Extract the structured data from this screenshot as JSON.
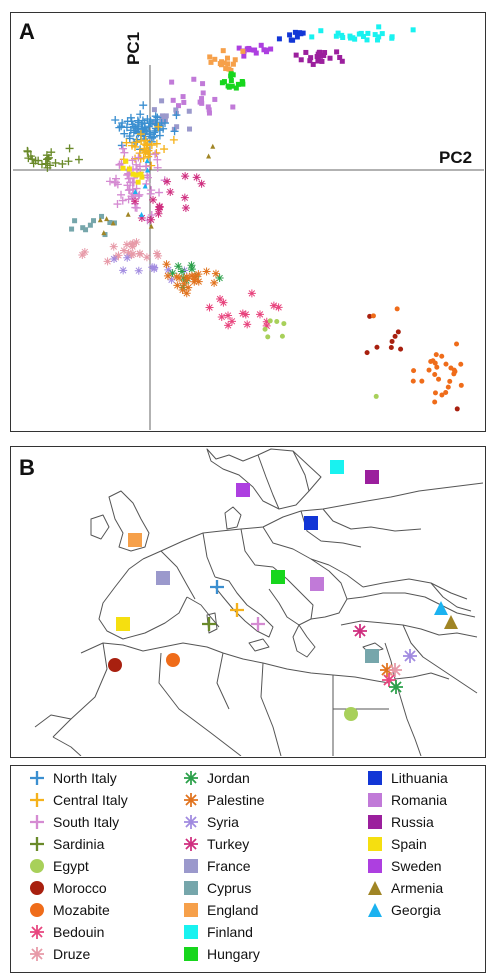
{
  "panels": {
    "a_letter": "A",
    "b_letter": "B"
  },
  "chart_data": [
    {
      "type": "scatter",
      "panel": "A",
      "xlabel": "PC2",
      "ylabel": "PC1",
      "grid": false,
      "xlim": [
        -1,
        2.35
      ],
      "ylim": [
        -1.95,
        1.0
      ],
      "clusters": [
        {
          "pop": "Finland",
          "cx": 1.5,
          "cy": 0.87,
          "sx": 0.16,
          "sy": 0.025,
          "n": 24,
          "seed": 11
        },
        {
          "pop": "Lithuania",
          "cx": 1.0,
          "cy": 0.87,
          "sx": 0.08,
          "sy": 0.025,
          "n": 10,
          "seed": 12
        },
        {
          "pop": "Russia",
          "cx": 1.15,
          "cy": 0.72,
          "sx": 0.1,
          "sy": 0.03,
          "n": 20,
          "seed": 13
        },
        {
          "pop": "Sweden",
          "cx": 0.72,
          "cy": 0.76,
          "sx": 0.06,
          "sy": 0.02,
          "n": 14,
          "seed": 14
        },
        {
          "pop": "England",
          "cx": 0.5,
          "cy": 0.66,
          "sx": 0.05,
          "sy": 0.05,
          "n": 16,
          "seed": 15
        },
        {
          "pop": "Hungary",
          "cx": 0.58,
          "cy": 0.52,
          "sx": 0.05,
          "sy": 0.04,
          "n": 14,
          "seed": 16
        },
        {
          "pop": "Romania",
          "cx": 0.32,
          "cy": 0.43,
          "sx": 0.1,
          "sy": 0.08,
          "n": 16,
          "seed": 17
        },
        {
          "pop": "France",
          "cx": 0.12,
          "cy": 0.27,
          "sx": 0.1,
          "sy": 0.06,
          "n": 14,
          "seed": 18
        },
        {
          "pop": "North Italy",
          "cx": -0.08,
          "cy": 0.2,
          "sx": 0.1,
          "sy": 0.06,
          "n": 70,
          "seed": 19
        },
        {
          "pop": "Central Italy",
          "cx": -0.06,
          "cy": 0.08,
          "sx": 0.07,
          "sy": 0.06,
          "n": 30,
          "seed": 20
        },
        {
          "pop": "South Italy",
          "cx": -0.14,
          "cy": -0.18,
          "sx": 0.09,
          "sy": 0.1,
          "n": 60,
          "seed": 21
        },
        {
          "pop": "Spain",
          "cx": -0.18,
          "cy": -0.12,
          "sx": 0.05,
          "sy": 0.04,
          "n": 8,
          "seed": 22
        },
        {
          "pop": "Sardinia",
          "cx": -0.72,
          "cy": -0.02,
          "sx": 0.12,
          "sy": 0.04,
          "n": 22,
          "seed": 23
        },
        {
          "pop": "Cyprus",
          "cx": -0.4,
          "cy": -0.48,
          "sx": 0.1,
          "sy": 0.04,
          "n": 10,
          "seed": 24
        },
        {
          "pop": "Armenia",
          "cx": -0.24,
          "cy": -0.49,
          "sx": 0.12,
          "sy": 0.03,
          "n": 6,
          "seed": 25
        },
        {
          "pop": "Georgia",
          "cx": -0.06,
          "cy": -0.15,
          "sx": 0.04,
          "sy": 0.05,
          "n": 4,
          "seed": 26
        },
        {
          "pop": "Turkey",
          "cx": 0.08,
          "cy": -0.3,
          "sx": 0.1,
          "sy": 0.1,
          "n": 14,
          "seed": 27
        },
        {
          "pop": "Druze",
          "cx": -0.2,
          "cy": -0.69,
          "sx": 0.12,
          "sy": 0.04,
          "n": 20,
          "seed": 28
        },
        {
          "pop": "Syria",
          "cx": 0.02,
          "cy": -0.8,
          "sx": 0.1,
          "sy": 0.06,
          "n": 10,
          "seed": 29
        },
        {
          "pop": "Jordan",
          "cx": 0.28,
          "cy": -0.86,
          "sx": 0.12,
          "sy": 0.06,
          "n": 10,
          "seed": 30
        },
        {
          "pop": "Palestine",
          "cx": 0.25,
          "cy": -0.9,
          "sx": 0.12,
          "sy": 0.05,
          "n": 20,
          "seed": 31
        },
        {
          "pop": "Bedouin",
          "cx": 0.68,
          "cy": -1.14,
          "sx": 0.15,
          "sy": 0.08,
          "n": 16,
          "seed": 32
        },
        {
          "pop": "Egypt",
          "cx": 0.85,
          "cy": -1.22,
          "sx": 0.08,
          "sy": 0.05,
          "n": 6,
          "seed": 33
        },
        {
          "pop": "Morocco",
          "cx": 1.72,
          "cy": -1.35,
          "sx": 0.1,
          "sy": 0.08,
          "n": 8,
          "seed": 34
        },
        {
          "pop": "Mozabite",
          "cx": 2.05,
          "cy": -1.55,
          "sx": 0.1,
          "sy": 0.08,
          "n": 26,
          "seed": 35
        }
      ],
      "extra_points": [
        {
          "pop": "Armenia",
          "x": 0.43,
          "y": 0.07
        },
        {
          "pop": "Armenia",
          "x": 0.4,
          "y": 0.0
        },
        {
          "pop": "Georgia",
          "x": -0.08,
          "y": -0.42
        },
        {
          "pop": "Mozabite",
          "x": 1.58,
          "y": -1.15
        },
        {
          "pop": "Mozabite",
          "x": 1.75,
          "y": -1.1
        },
        {
          "pop": "Morocco",
          "x": 2.18,
          "y": -1.82
        },
        {
          "pop": "Egypt",
          "x": 1.6,
          "y": -1.73
        },
        {
          "pop": "Turkey",
          "x": 0.23,
          "y": -0.3
        },
        {
          "pop": "Turkey",
          "x": 0.35,
          "y": -0.2
        }
      ]
    },
    {
      "type": "map",
      "panel": "B",
      "markers": [
        {
          "pop": "Finland",
          "mx": 326,
          "my": 20
        },
        {
          "pop": "Russia",
          "mx": 361,
          "my": 30
        },
        {
          "pop": "Sweden",
          "mx": 232,
          "my": 43
        },
        {
          "pop": "Lithuania",
          "mx": 300,
          "my": 76
        },
        {
          "pop": "England",
          "mx": 124,
          "my": 93
        },
        {
          "pop": "France",
          "mx": 152,
          "my": 131
        },
        {
          "pop": "Hungary",
          "mx": 267,
          "my": 130
        },
        {
          "pop": "Romania",
          "mx": 306,
          "my": 137
        },
        {
          "pop": "North Italy",
          "mx": 206,
          "my": 140
        },
        {
          "pop": "Central Italy",
          "mx": 226,
          "my": 163
        },
        {
          "pop": "Spain",
          "mx": 112,
          "my": 177
        },
        {
          "pop": "Sardinia",
          "mx": 198,
          "my": 177
        },
        {
          "pop": "South Italy",
          "mx": 247,
          "my": 177
        },
        {
          "pop": "Georgia",
          "mx": 430,
          "my": 161
        },
        {
          "pop": "Armenia",
          "mx": 440,
          "my": 175
        },
        {
          "pop": "Turkey",
          "mx": 349,
          "my": 184
        },
        {
          "pop": "Cyprus",
          "mx": 361,
          "my": 209
        },
        {
          "pop": "Morocco",
          "mx": 104,
          "my": 218
        },
        {
          "pop": "Mozabite",
          "mx": 162,
          "my": 213
        },
        {
          "pop": "Syria",
          "mx": 399,
          "my": 209
        },
        {
          "pop": "Palestine",
          "mx": 376,
          "my": 223
        },
        {
          "pop": "Druze",
          "mx": 384,
          "my": 223
        },
        {
          "pop": "Bedouin",
          "mx": 378,
          "my": 233
        },
        {
          "pop": "Jordan",
          "mx": 385,
          "my": 240
        },
        {
          "pop": "Egypt",
          "mx": 340,
          "my": 267
        }
      ]
    }
  ],
  "legend": {
    "columns": [
      [
        {
          "label": "North Italy",
          "color": "#3b8fd0",
          "shape": "plus"
        },
        {
          "label": "Central Italy",
          "color": "#f5b21c",
          "shape": "plus"
        },
        {
          "label": "South Italy",
          "color": "#d58bd2",
          "shape": "plus"
        },
        {
          "label": "Sardinia",
          "color": "#6a8a2a",
          "shape": "plus"
        },
        {
          "label": "Egypt",
          "color": "#a8d05a",
          "shape": "circle"
        },
        {
          "label": "Morocco",
          "color": "#a8200f",
          "shape": "circle"
        },
        {
          "label": "Mozabite",
          "color": "#ef6c1a",
          "shape": "circle"
        },
        {
          "label": "Bedouin",
          "color": "#e8457e",
          "shape": "star"
        },
        {
          "label": "Druze",
          "color": "#e79aa8",
          "shape": "star"
        }
      ],
      [
        {
          "label": "Jordan",
          "color": "#2ba04a",
          "shape": "star"
        },
        {
          "label": "Palestine",
          "color": "#e1731e",
          "shape": "star"
        },
        {
          "label": "Syria",
          "color": "#a18be0",
          "shape": "star"
        },
        {
          "label": "Turkey",
          "color": "#cf2e7f",
          "shape": "star"
        },
        {
          "label": "France",
          "color": "#9b99cc",
          "shape": "square"
        },
        {
          "label": "Cyprus",
          "color": "#76a6ab",
          "shape": "square"
        },
        {
          "label": "England",
          "color": "#f6a04a",
          "shape": "square"
        },
        {
          "label": "Finland",
          "color": "#19f2f0",
          "shape": "square"
        },
        {
          "label": "Hungary",
          "color": "#17d61d",
          "shape": "square"
        }
      ],
      [
        {
          "label": "Lithuania",
          "color": "#1236d6",
          "shape": "square"
        },
        {
          "label": "Romania",
          "color": "#c17ad8",
          "shape": "square"
        },
        {
          "label": "Russia",
          "color": "#9b1f9d",
          "shape": "square"
        },
        {
          "label": "Spain",
          "color": "#f5df10",
          "shape": "square"
        },
        {
          "label": "Sweden",
          "color": "#ad3fe0",
          "shape": "square"
        },
        {
          "label": "Armenia",
          "color": "#a08525",
          "shape": "triangle"
        },
        {
          "label": "Georgia",
          "color": "#1bb2f0",
          "shape": "triangle"
        }
      ]
    ]
  }
}
